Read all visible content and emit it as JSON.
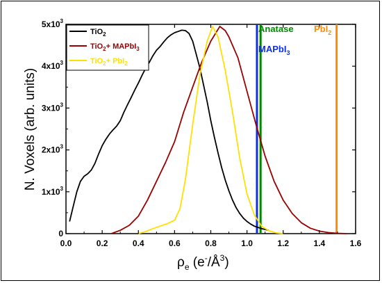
{
  "chart_data": {
    "type": "line",
    "xlabel": "ρe (e-/Å3)",
    "ylabel": "N. Voxels (arb. units)",
    "xlim": [
      0,
      1.6
    ],
    "ylim": [
      0,
      5000
    ],
    "grid": false,
    "legend_position": "top-left",
    "x_ticks": [
      "0.0",
      "0.2",
      "0.4",
      "0.6",
      "0.8",
      "1.0",
      "1.2",
      "1.4",
      "1.6"
    ],
    "x_tick_values": [
      0,
      0.2,
      0.4,
      0.6,
      0.8,
      1.0,
      1.2,
      1.4,
      1.6
    ],
    "y_ticks": [
      "0",
      "1x10³",
      "2x10³",
      "3x10³",
      "4x10³",
      "5x10³"
    ],
    "y_tick_values": [
      0,
      1000,
      2000,
      3000,
      4000,
      5000
    ],
    "series": [
      {
        "name": "TiO2",
        "color": "#000000",
        "points": [
          [
            0.02,
            290
          ],
          [
            0.04,
            650
          ],
          [
            0.06,
            1000
          ],
          [
            0.08,
            1250
          ],
          [
            0.1,
            1370
          ],
          [
            0.12,
            1430
          ],
          [
            0.14,
            1520
          ],
          [
            0.16,
            1680
          ],
          [
            0.18,
            1900
          ],
          [
            0.2,
            2100
          ],
          [
            0.22,
            2250
          ],
          [
            0.24,
            2380
          ],
          [
            0.26,
            2480
          ],
          [
            0.28,
            2570
          ],
          [
            0.3,
            2700
          ],
          [
            0.32,
            2900
          ],
          [
            0.34,
            3080
          ],
          [
            0.36,
            3250
          ],
          [
            0.38,
            3430
          ],
          [
            0.4,
            3600
          ],
          [
            0.42,
            3780
          ],
          [
            0.44,
            3950
          ],
          [
            0.46,
            4090
          ],
          [
            0.48,
            4250
          ],
          [
            0.5,
            4380
          ],
          [
            0.52,
            4470
          ],
          [
            0.54,
            4580
          ],
          [
            0.56,
            4680
          ],
          [
            0.58,
            4750
          ],
          [
            0.6,
            4800
          ],
          [
            0.62,
            4830
          ],
          [
            0.64,
            4860
          ],
          [
            0.66,
            4850
          ],
          [
            0.68,
            4780
          ],
          [
            0.7,
            4600
          ],
          [
            0.72,
            4280
          ],
          [
            0.74,
            3950
          ],
          [
            0.76,
            3550
          ],
          [
            0.78,
            3150
          ],
          [
            0.8,
            2700
          ],
          [
            0.82,
            2300
          ],
          [
            0.84,
            1930
          ],
          [
            0.86,
            1580
          ],
          [
            0.88,
            1280
          ],
          [
            0.9,
            1020
          ],
          [
            0.92,
            800
          ],
          [
            0.94,
            620
          ],
          [
            0.96,
            480
          ],
          [
            0.98,
            370
          ],
          [
            1.0,
            290
          ],
          [
            1.02,
            230
          ],
          [
            1.04,
            180
          ],
          [
            1.06,
            150
          ],
          [
            1.08,
            120
          ],
          [
            1.1,
            100
          ],
          [
            1.12,
            80
          ]
        ]
      },
      {
        "name": "TiO2+ MAPbI3",
        "color": "#9b0000",
        "points": [
          [
            0.25,
            0
          ],
          [
            0.3,
            80
          ],
          [
            0.35,
            200
          ],
          [
            0.4,
            420
          ],
          [
            0.45,
            800
          ],
          [
            0.5,
            1250
          ],
          [
            0.55,
            1700
          ],
          [
            0.6,
            2200
          ],
          [
            0.65,
            2900
          ],
          [
            0.7,
            3500
          ],
          [
            0.75,
            4100
          ],
          [
            0.8,
            4600
          ],
          [
            0.85,
            4950
          ],
          [
            0.88,
            4850
          ],
          [
            0.9,
            4700
          ],
          [
            0.95,
            4200
          ],
          [
            1.0,
            3400
          ],
          [
            1.05,
            2600
          ],
          [
            1.1,
            1850
          ],
          [
            1.15,
            1250
          ],
          [
            1.2,
            800
          ],
          [
            1.25,
            480
          ],
          [
            1.3,
            260
          ],
          [
            1.35,
            130
          ],
          [
            1.4,
            60
          ],
          [
            1.45,
            25
          ],
          [
            1.5,
            8
          ],
          [
            1.55,
            0
          ]
        ]
      },
      {
        "name": "TiO2+ PbI2",
        "color": "#ffe000",
        "points": [
          [
            0.4,
            0
          ],
          [
            0.44,
            50
          ],
          [
            0.48,
            120
          ],
          [
            0.52,
            180
          ],
          [
            0.56,
            240
          ],
          [
            0.6,
            320
          ],
          [
            0.63,
            600
          ],
          [
            0.66,
            1300
          ],
          [
            0.7,
            2600
          ],
          [
            0.74,
            3800
          ],
          [
            0.78,
            4600
          ],
          [
            0.81,
            4950
          ],
          [
            0.84,
            4700
          ],
          [
            0.88,
            3900
          ],
          [
            0.92,
            2900
          ],
          [
            0.96,
            1800
          ],
          [
            1.0,
            950
          ],
          [
            1.04,
            450
          ],
          [
            1.08,
            180
          ],
          [
            1.12,
            70
          ],
          [
            1.16,
            20
          ],
          [
            1.2,
            0
          ]
        ]
      }
    ],
    "reference_lines": [
      {
        "name": "Anatase",
        "x": 1.075,
        "color": "#008800"
      },
      {
        "name": "MAPbI3",
        "x": 1.055,
        "color": "#1030e0"
      },
      {
        "name": "PbI2",
        "x": 1.495,
        "color": "#ff8c00"
      }
    ]
  }
}
